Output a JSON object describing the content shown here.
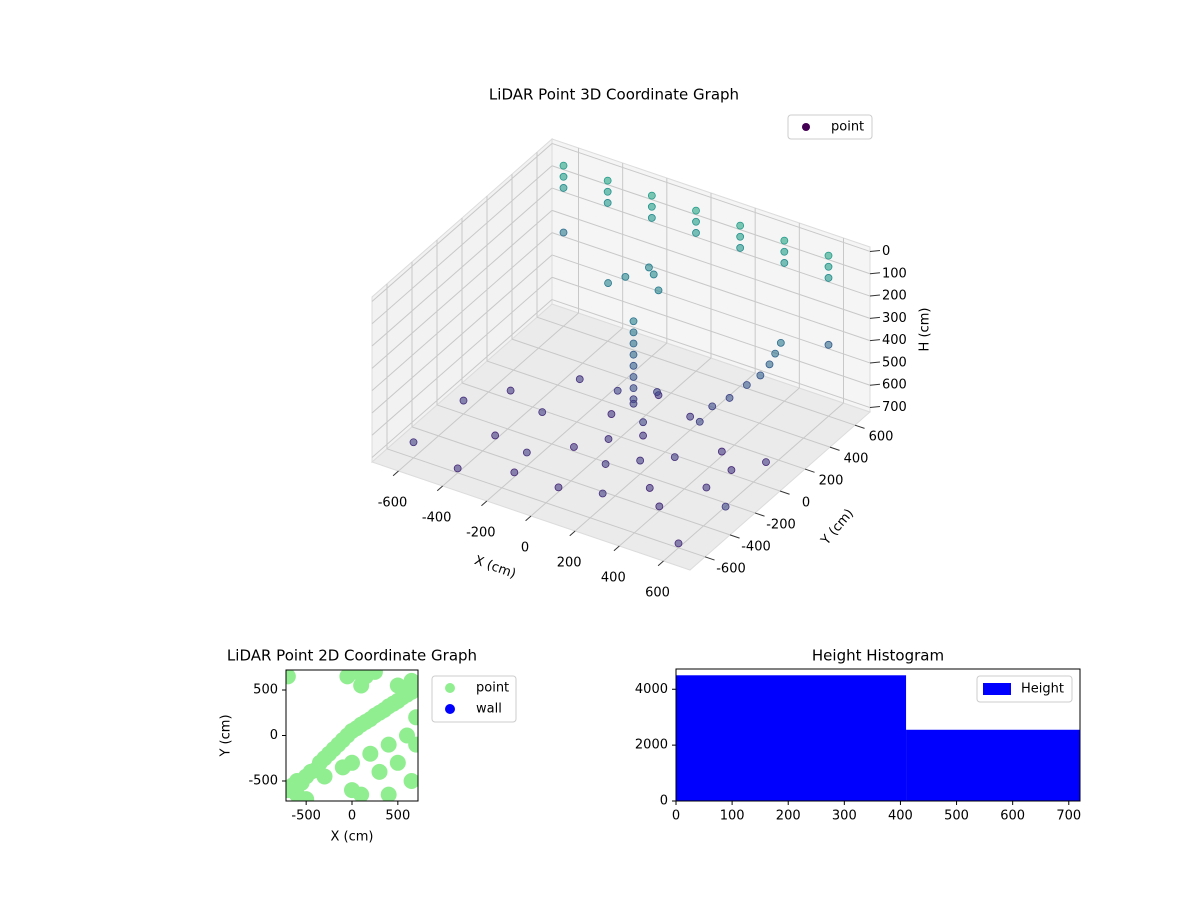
{
  "chart_data": [
    {
      "type": "scatter3d",
      "title": "LiDAR Point 3D Coordinate Graph",
      "xlabel": "X (cm)",
      "ylabel": "Y (cm)",
      "zlabel": "H (cm)",
      "xlim": [
        -720,
        720
      ],
      "ylim": [
        -720,
        720
      ],
      "zlim": [
        720,
        -20
      ],
      "xticks": [
        -600,
        -400,
        -200,
        0,
        200,
        400,
        600
      ],
      "yticks": [
        -600,
        -400,
        -200,
        0,
        200,
        400,
        600
      ],
      "zticks": [
        0,
        100,
        200,
        300,
        400,
        500,
        600,
        700
      ],
      "colormap": "viridis",
      "legend": "upper right",
      "series": [
        {
          "name": "point",
          "color": "#440154",
          "x": [
            -600,
            -600,
            -600,
            -400,
            -400,
            -400,
            -200,
            -200,
            -200,
            0,
            0,
            0,
            200,
            200,
            200,
            400,
            400,
            400,
            600,
            600,
            600,
            -600,
            -400,
            -200,
            0,
            200,
            400,
            -500,
            -300,
            -100,
            100,
            300,
            500,
            -300,
            -100,
            100,
            300,
            500,
            0,
            200,
            400,
            600,
            -200,
            200,
            0,
            0,
            0,
            0,
            0,
            0,
            0,
            0,
            0,
            0,
            100,
            -100,
            50,
            -150,
            -50,
            -200,
            0,
            -100,
            300,
            350,
            400,
            450,
            480,
            500,
            520,
            300,
            -600,
            600,
            -600,
            600,
            700,
            -400
          ],
          "y": [
            600,
            600,
            600,
            600,
            600,
            600,
            600,
            600,
            600,
            600,
            600,
            600,
            600,
            600,
            600,
            600,
            600,
            600,
            600,
            600,
            600,
            -200,
            -300,
            -400,
            -500,
            -500,
            -400,
            0,
            -100,
            -200,
            -300,
            -300,
            -200,
            200,
            100,
            0,
            -100,
            0,
            300,
            200,
            100,
            100,
            -500,
            -200,
            -100,
            100,
            100,
            100,
            100,
            100,
            100,
            100,
            100,
            100,
            0,
            150,
            200,
            300,
            350,
            250,
            300,
            400,
            200,
            250,
            300,
            320,
            340,
            350,
            360,
            100,
            -600,
            -600,
            600,
            600,
            -400,
            -600
          ],
          "z": [
            0,
            50,
            100,
            0,
            50,
            100,
            0,
            50,
            100,
            0,
            50,
            100,
            0,
            50,
            100,
            0,
            50,
            100,
            0,
            50,
            100,
            660,
            700,
            660,
            700,
            660,
            700,
            680,
            660,
            700,
            660,
            700,
            680,
            660,
            700,
            680,
            660,
            700,
            680,
            660,
            700,
            680,
            700,
            660,
            680,
            600,
            550,
            500,
            450,
            400,
            350,
            300,
            250,
            620,
            620,
            620,
            600,
            200,
            180,
            220,
            210,
            190,
            580,
            550,
            500,
            450,
            400,
            350,
            300,
            600,
            650,
            700,
            300,
            400,
            600,
            700
          ]
        }
      ]
    },
    {
      "type": "scatter",
      "title": "LiDAR Point 2D Coordinate Graph",
      "xlabel": "X (cm)",
      "ylabel": "Y (cm)",
      "xlim": [
        -720,
        720
      ],
      "ylim": [
        -720,
        720
      ],
      "xticks": [
        -500,
        0,
        500
      ],
      "yticks": [
        -500,
        0,
        500
      ],
      "legend": "outside right",
      "series": [
        {
          "name": "point",
          "color": "#90ee90",
          "x": [
            -700,
            -650,
            -600,
            -550,
            -500,
            -450,
            -400,
            -350,
            -300,
            -250,
            -200,
            -150,
            -100,
            -50,
            0,
            50,
            100,
            150,
            200,
            250,
            300,
            350,
            400,
            450,
            500,
            550,
            600,
            650,
            700,
            -600,
            -300,
            0,
            200,
            400,
            600,
            700,
            -100,
            300,
            500,
            700,
            -500,
            100,
            400,
            650,
            0,
            -50,
            50,
            150,
            250,
            100,
            -700,
            500,
            650
          ],
          "y": [
            -600,
            -550,
            -500,
            -520,
            -450,
            -400,
            -380,
            -300,
            -250,
            -200,
            -150,
            -100,
            -50,
            0,
            50,
            80,
            120,
            150,
            180,
            220,
            250,
            280,
            320,
            350,
            380,
            420,
            450,
            480,
            520,
            -650,
            -450,
            -300,
            -200,
            -100,
            0,
            200,
            -350,
            -400,
            -300,
            -100,
            -700,
            -650,
            -650,
            -500,
            -600,
            650,
            700,
            650,
            700,
            550,
            650,
            550,
            600
          ]
        },
        {
          "name": "wall",
          "color": "#0000ff",
          "x": [],
          "y": []
        }
      ]
    },
    {
      "type": "histogram",
      "title": "Height Histogram",
      "bins": [
        0,
        410,
        720
      ],
      "xlim": [
        0,
        720
      ],
      "ylim": [
        0,
        4725
      ],
      "xticks": [
        0,
        100,
        200,
        300,
        400,
        500,
        600,
        700
      ],
      "yticks": [
        0,
        2000,
        4000
      ],
      "legend": "upper right",
      "series": [
        {
          "name": "Height",
          "color": "#0000ff",
          "values": [
            4500,
            2550
          ]
        }
      ]
    }
  ]
}
